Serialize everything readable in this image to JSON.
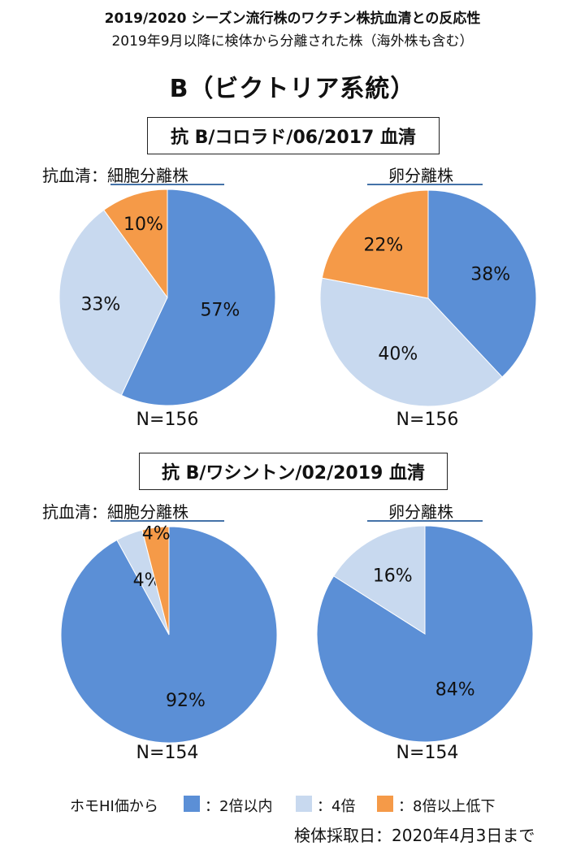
{
  "header": {
    "title": "2019/2020 シーズン流行株のワクチン株抗血清との反応性",
    "subtitle": "2019年9月以降に検体から分離された株（海外株も含む）",
    "lineage": "B（ビクトリア系統）"
  },
  "sections": [
    {
      "antiserum_title": "抗 B/コロラド/06/2017 血清",
      "left_label": "抗血清：細胞分離株",
      "right_label": "卵分離株",
      "left_n": "N=156",
      "right_n": "N=156"
    },
    {
      "antiserum_title": "抗 B/ワシントン/02/2019 血清",
      "left_label": "抗血清：細胞分離株",
      "right_label": "卵分離株",
      "left_n": "N=154",
      "right_n": "N=154"
    }
  ],
  "colors": {
    "within2": "#5b8fd6",
    "x4": "#c8d9ef",
    "x8": "#f59a48"
  },
  "legend": {
    "prefix": "ホモHI価から",
    "items": [
      {
        "label": "：2倍以内",
        "color": "#5b8fd6"
      },
      {
        "label": "：4倍",
        "color": "#c8d9ef"
      },
      {
        "label": "：8倍以上低下",
        "color": "#f59a48"
      }
    ]
  },
  "footer": "検体採取日：2020年4月3日まで",
  "chart_data": [
    {
      "type": "pie",
      "title": "抗 B/コロラド/06/2017 血清 — 細胞分離株",
      "categories": [
        "2倍以内",
        "4倍",
        "8倍以上低下"
      ],
      "values": [
        57,
        33,
        10
      ],
      "labels": [
        "57%",
        "33%",
        "10%"
      ],
      "n": 156
    },
    {
      "type": "pie",
      "title": "抗 B/コロラド/06/2017 血清 — 卵分離株",
      "categories": [
        "2倍以内",
        "4倍",
        "8倍以上低下"
      ],
      "values": [
        38,
        40,
        22
      ],
      "labels": [
        "38%",
        "40%",
        "22%"
      ],
      "n": 156
    },
    {
      "type": "pie",
      "title": "抗 B/ワシントン/02/2019 血清 — 細胞分離株",
      "categories": [
        "2倍以内",
        "4倍",
        "8倍以上低下"
      ],
      "values": [
        92,
        4,
        4
      ],
      "labels": [
        "92%",
        "4%",
        "4%"
      ],
      "n": 154
    },
    {
      "type": "pie",
      "title": "抗 B/ワシントン/02/2019 血清 — 卵分離株",
      "categories": [
        "2倍以内",
        "4倍",
        "8倍以上低下"
      ],
      "values": [
        84,
        16,
        0
      ],
      "labels": [
        "84%",
        "16%",
        ""
      ],
      "n": 154
    }
  ]
}
